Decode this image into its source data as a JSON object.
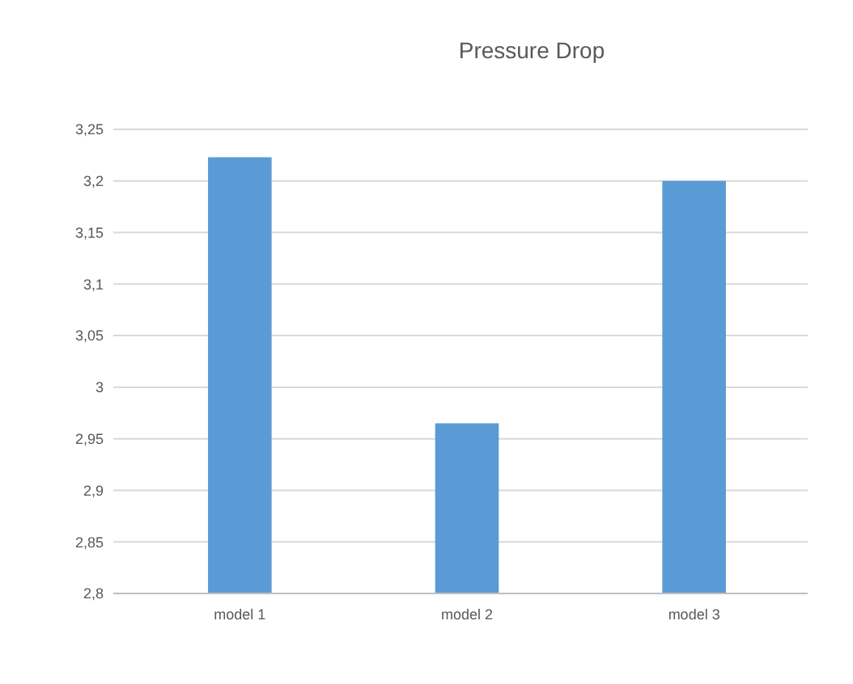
{
  "chart_data": {
    "type": "bar",
    "title": "Pressure Drop",
    "categories": [
      "model 1",
      "model 2",
      "model 3"
    ],
    "values": [
      3.223,
      2.965,
      3.2
    ],
    "color": "#5b9bd5",
    "ylim": [
      2.8,
      3.25
    ],
    "yticks": [
      {
        "value": 2.8,
        "label": "2,8"
      },
      {
        "value": 2.85,
        "label": "2,85"
      },
      {
        "value": 2.9,
        "label": "2,9"
      },
      {
        "value": 2.95,
        "label": "2,95"
      },
      {
        "value": 3,
        "label": "3"
      },
      {
        "value": 3.05,
        "label": "3,05"
      },
      {
        "value": 3.1,
        "label": "3,1"
      },
      {
        "value": 3.15,
        "label": "3,15"
      },
      {
        "value": 3.2,
        "label": "3,2"
      },
      {
        "value": 3.25,
        "label": "3,25"
      }
    ],
    "grid": true
  }
}
